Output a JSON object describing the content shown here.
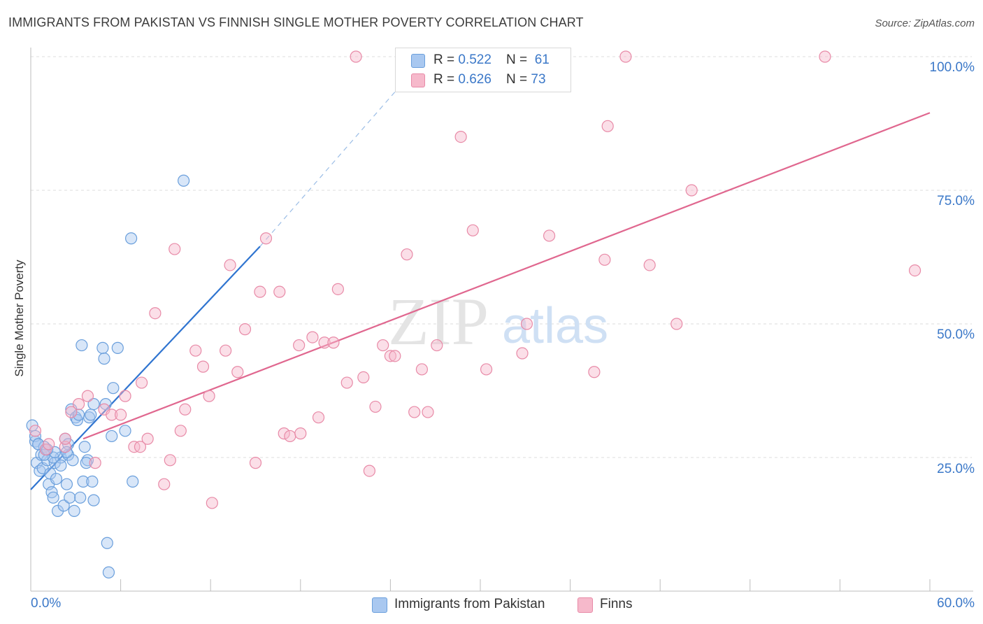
{
  "title": "IMMIGRANTS FROM PAKISTAN VS FINNISH SINGLE MOTHER POVERTY CORRELATION CHART",
  "source": "Source: ZipAtlas.com",
  "watermark": {
    "zip": "ZIP",
    "atlas": "atlas"
  },
  "legend_top": [
    {
      "r_label": "R = ",
      "r_value": "0.522",
      "n_label": "N = ",
      "n_value": "61",
      "color": "#a9c8f0"
    },
    {
      "r_label": "R = ",
      "r_value": "0.626",
      "n_label": "N = ",
      "n_value": "73",
      "color": "#f6b9cb"
    }
  ],
  "chart_data": {
    "type": "scatter",
    "title": "IMMIGRANTS FROM PAKISTAN VS FINNISH SINGLE MOTHER POVERTY CORRELATION CHART",
    "xlabel": "",
    "ylabel": "Single Mother Poverty",
    "xlim": [
      0,
      60
    ],
    "ylim": [
      0,
      102
    ],
    "x_tick_labels": [
      "0.0%",
      "60.0%"
    ],
    "y_ticks": [
      25,
      50,
      75,
      100
    ],
    "y_tick_labels": [
      "25.0%",
      "50.0%",
      "75.0%",
      "100.0%"
    ],
    "grid": true,
    "legend_position": "bottom",
    "series": [
      {
        "name": "Immigrants from Pakistan",
        "color": "#a9c8f0",
        "stroke": "#6a9fdc",
        "trend_color": "#2f74d0",
        "trend": {
          "x1": 0,
          "y1": 19.0,
          "x2": 15.3,
          "y2": 64.5,
          "dash_x2": 24.8,
          "dash_y2": 95.0
        },
        "points": [
          [
            0.1,
            31.0
          ],
          [
            0.3,
            28.0
          ],
          [
            0.3,
            29.0
          ],
          [
            0.4,
            24.0
          ],
          [
            0.5,
            27.5
          ],
          [
            0.6,
            22.5
          ],
          [
            0.7,
            25.5
          ],
          [
            0.8,
            23.0
          ],
          [
            0.9,
            27.0
          ],
          [
            1.0,
            26.5
          ],
          [
            1.1,
            24.5
          ],
          [
            1.2,
            20.0
          ],
          [
            1.3,
            22.0
          ],
          [
            1.4,
            18.5
          ],
          [
            1.5,
            17.5
          ],
          [
            1.6,
            24.0
          ],
          [
            1.7,
            21.0
          ],
          [
            1.8,
            15.0
          ],
          [
            2.0,
            25.0
          ],
          [
            2.2,
            16.0
          ],
          [
            2.3,
            28.5
          ],
          [
            2.4,
            20.0
          ],
          [
            2.5,
            25.5
          ],
          [
            2.6,
            17.5
          ],
          [
            2.7,
            34.0
          ],
          [
            2.9,
            15.0
          ],
          [
            3.0,
            32.5
          ],
          [
            3.1,
            32.0
          ],
          [
            3.3,
            17.5
          ],
          [
            3.4,
            46.0
          ],
          [
            3.5,
            20.5
          ],
          [
            3.6,
            27.0
          ],
          [
            3.8,
            24.5
          ],
          [
            3.9,
            32.5
          ],
          [
            4.0,
            33.0
          ],
          [
            4.1,
            20.5
          ],
          [
            4.2,
            17.0
          ],
          [
            4.8,
            45.5
          ],
          [
            4.9,
            43.5
          ],
          [
            5.0,
            35.0
          ],
          [
            5.1,
            9.0
          ],
          [
            5.2,
            3.5
          ],
          [
            5.4,
            29.0
          ],
          [
            5.5,
            38.0
          ],
          [
            5.8,
            45.5
          ],
          [
            6.3,
            30.0
          ],
          [
            6.7,
            66.0
          ],
          [
            6.8,
            20.5
          ],
          [
            10.2,
            76.8
          ],
          [
            1.5,
            25.0
          ],
          [
            2.0,
            23.5
          ],
          [
            2.8,
            24.5
          ],
          [
            0.9,
            25.5
          ],
          [
            1.6,
            26.0
          ],
          [
            3.7,
            24.0
          ],
          [
            2.5,
            27.5
          ],
          [
            0.5,
            27.5
          ],
          [
            1.1,
            26.5
          ],
          [
            4.2,
            35.0
          ],
          [
            2.4,
            26.0
          ],
          [
            3.2,
            33.0
          ]
        ]
      },
      {
        "name": "Finns",
        "color": "#f6b9cb",
        "stroke": "#e88aa7",
        "trend_color": "#e0678f",
        "trend": {
          "x1": 3.5,
          "y1": 28.5,
          "x2": 60,
          "y2": 89.5
        },
        "points": [
          [
            0.3,
            30.0
          ],
          [
            1.0,
            26.5
          ],
          [
            1.2,
            27.5
          ],
          [
            2.3,
            27.0
          ],
          [
            2.3,
            28.5
          ],
          [
            2.7,
            33.5
          ],
          [
            3.2,
            35.0
          ],
          [
            3.8,
            36.5
          ],
          [
            4.3,
            24.0
          ],
          [
            4.9,
            34.0
          ],
          [
            5.4,
            33.0
          ],
          [
            6.0,
            33.0
          ],
          [
            6.3,
            36.5
          ],
          [
            6.9,
            27.0
          ],
          [
            7.4,
            39.0
          ],
          [
            7.8,
            28.5
          ],
          [
            8.3,
            52.0
          ],
          [
            8.9,
            20.0
          ],
          [
            9.3,
            24.5
          ],
          [
            9.6,
            64.0
          ],
          [
            10.3,
            34.0
          ],
          [
            11.0,
            45.0
          ],
          [
            11.5,
            42.0
          ],
          [
            11.9,
            36.5
          ],
          [
            12.1,
            16.5
          ],
          [
            13.0,
            45.0
          ],
          [
            13.3,
            61.0
          ],
          [
            13.8,
            41.0
          ],
          [
            14.3,
            49.0
          ],
          [
            15.0,
            24.0
          ],
          [
            15.3,
            56.0
          ],
          [
            15.7,
            66.0
          ],
          [
            16.6,
            56.0
          ],
          [
            16.9,
            29.5
          ],
          [
            17.3,
            29.0
          ],
          [
            17.9,
            46.0
          ],
          [
            18.0,
            29.5
          ],
          [
            18.8,
            47.5
          ],
          [
            19.2,
            32.5
          ],
          [
            19.6,
            46.5
          ],
          [
            20.2,
            46.5
          ],
          [
            20.5,
            56.5
          ],
          [
            21.1,
            39.0
          ],
          [
            21.7,
            100.0
          ],
          [
            22.2,
            40.0
          ],
          [
            22.6,
            22.5
          ],
          [
            23.0,
            34.5
          ],
          [
            23.5,
            46.0
          ],
          [
            24.0,
            44.0
          ],
          [
            24.3,
            44.0
          ],
          [
            25.1,
            63.0
          ],
          [
            25.6,
            33.5
          ],
          [
            26.1,
            41.5
          ],
          [
            26.5,
            33.5
          ],
          [
            27.1,
            46.0
          ],
          [
            28.7,
            85.0
          ],
          [
            29.5,
            67.5
          ],
          [
            30.4,
            41.5
          ],
          [
            32.8,
            44.5
          ],
          [
            33.1,
            50.0
          ],
          [
            34.6,
            66.5
          ],
          [
            35.5,
            100.0
          ],
          [
            37.6,
            41.0
          ],
          [
            38.3,
            62.0
          ],
          [
            38.5,
            87.0
          ],
          [
            39.7,
            100.0
          ],
          [
            41.3,
            61.0
          ],
          [
            43.1,
            50.0
          ],
          [
            44.1,
            75.0
          ],
          [
            53.0,
            100.0
          ],
          [
            59.0,
            60.0
          ],
          [
            7.3,
            27.0
          ],
          [
            10.0,
            30.0
          ]
        ]
      }
    ]
  }
}
